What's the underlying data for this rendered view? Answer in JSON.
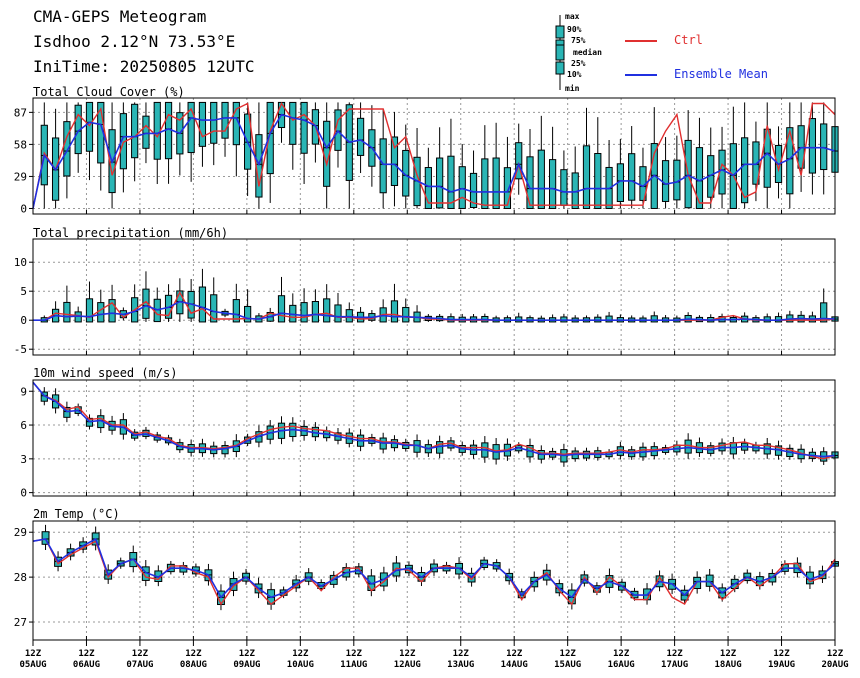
{
  "header": {
    "title": "CMA-GEPS Meteogram",
    "location": "Isdhoo 2.12°N 73.53°E",
    "init_time": "IniTime: 20250805 12UTC"
  },
  "legend": {
    "box_labels": [
      "max",
      "90%",
      "75%",
      "median",
      "25%",
      "10%",
      "min"
    ],
    "ctrl_label": "Ctrl",
    "mean_label": "Ensemble Mean",
    "ctrl_color": "#e03030",
    "mean_color": "#2030e0",
    "box_color": "#2ab5b5"
  },
  "x_ticks": [
    {
      "hour": "12Z",
      "date": "05AUG"
    },
    {
      "hour": "12Z",
      "date": "06AUG"
    },
    {
      "hour": "12Z",
      "date": "07AUG"
    },
    {
      "hour": "12Z",
      "date": "08AUG"
    },
    {
      "hour": "12Z",
      "date": "09AUG"
    },
    {
      "hour": "12Z",
      "date": "10AUG"
    },
    {
      "hour": "12Z",
      "date": "11AUG"
    },
    {
      "hour": "12Z",
      "date": "12AUG"
    },
    {
      "hour": "12Z",
      "date": "13AUG"
    },
    {
      "hour": "12Z",
      "date": "14AUG"
    },
    {
      "hour": "12Z",
      "date": "15AUG"
    },
    {
      "hour": "12Z",
      "date": "16AUG"
    },
    {
      "hour": "12Z",
      "date": "17AUG"
    },
    {
      "hour": "12Z",
      "date": "18AUG"
    },
    {
      "hour": "12Z",
      "date": "19AUG"
    },
    {
      "hour": "12Z",
      "date": "20AUG"
    }
  ],
  "chart_data": [
    {
      "type": "box",
      "title": "Total Cloud Cover (%)",
      "ylim": [
        -5,
        100
      ],
      "yticks": [
        0,
        29,
        58,
        87
      ],
      "ctrl": [
        0,
        50,
        35,
        65,
        85,
        75,
        90,
        30,
        60,
        65,
        75,
        65,
        85,
        80,
        90,
        65,
        70,
        70,
        90,
        95,
        20,
        70,
        95,
        80,
        85,
        75,
        40,
        80,
        90,
        90,
        90,
        90,
        55,
        65,
        30,
        5,
        5,
        5,
        10,
        5,
        3,
        3,
        3,
        40,
        3,
        3,
        3,
        3,
        3,
        3,
        3,
        3,
        3,
        3,
        3,
        50,
        70,
        85,
        30,
        5,
        5,
        40,
        30,
        10,
        15,
        75,
        35,
        70,
        30,
        95,
        95,
        85
      ],
      "mean": [
        0,
        48,
        35,
        52,
        70,
        78,
        76,
        42,
        65,
        65,
        68,
        68,
        72,
        68,
        82,
        80,
        80,
        82,
        82,
        60,
        40,
        68,
        85,
        82,
        80,
        75,
        55,
        70,
        60,
        62,
        55,
        40,
        40,
        30,
        25,
        20,
        20,
        15,
        18,
        15,
        15,
        15,
        15,
        40,
        18,
        18,
        18,
        15,
        15,
        18,
        18,
        18,
        25,
        25,
        20,
        30,
        22,
        24,
        30,
        25,
        30,
        35,
        30,
        40,
        40,
        50,
        40,
        45,
        55,
        55,
        55,
        52
      ]
    },
    {
      "type": "box",
      "title": "Total precipitation (mm/6h)",
      "ylim": [
        -6,
        14
      ],
      "yticks": [
        -5,
        0,
        5,
        10
      ],
      "ctrl": [
        0,
        0,
        1.2,
        1.0,
        0.8,
        0.5,
        1.8,
        3.0,
        0.5,
        1.8,
        3.2,
        1.0,
        0.8,
        4.8,
        1.2,
        2.0,
        0.2,
        0.2,
        0.2,
        0.3,
        0.2,
        1.2,
        0.8,
        0.5,
        0.5,
        1.0,
        1.2,
        0.5,
        0.5,
        0.2,
        0.3,
        1.0,
        1.0,
        0.5,
        0.5,
        0.2,
        0.2,
        0,
        0,
        0,
        0,
        0,
        0,
        0,
        0,
        0,
        0,
        0,
        0,
        0,
        0,
        0,
        0,
        0,
        0,
        0,
        0,
        0,
        0,
        0,
        0,
        0.5,
        0.8,
        0.2,
        0,
        0,
        0,
        0,
        0,
        0,
        0,
        0.2
      ],
      "mean": [
        0,
        0,
        0.8,
        0.6,
        0.7,
        0.6,
        1.0,
        1.2,
        1.0,
        1.5,
        2.5,
        1.8,
        2.2,
        3.2,
        2.8,
        2.2,
        1.5,
        1.2,
        1.0,
        0.3,
        0.2,
        0.6,
        1.2,
        1.0,
        0.8,
        1.0,
        0.8,
        0.6,
        0.6,
        0.5,
        0.5,
        0.8,
        0.6,
        0.6,
        0.5,
        0.4,
        0.3,
        0.1,
        0.1,
        0.1,
        0.1,
        0,
        0,
        0,
        0,
        0,
        0,
        0,
        0,
        0,
        0,
        0,
        0,
        0,
        0,
        0,
        0,
        0,
        0.2,
        0.1,
        0,
        0.1,
        0.1,
        0.2,
        0.1,
        0,
        0,
        0.2,
        0.3,
        0.2,
        0.3,
        0.2
      ]
    },
    {
      "type": "box",
      "title": "10m wind speed (m/s)",
      "ylim": [
        -0.3,
        10
      ],
      "yticks": [
        0,
        3,
        6,
        9
      ],
      "ctrl": [
        9.8,
        8.6,
        8.2,
        7.4,
        7.6,
        6.5,
        6.6,
        6.0,
        6.0,
        5.2,
        5.4,
        5.0,
        4.8,
        4.2,
        4.0,
        4.0,
        3.9,
        4.0,
        4.2,
        4.8,
        5.2,
        5.6,
        5.8,
        5.9,
        5.7,
        5.6,
        5.5,
        5.2,
        5.0,
        4.8,
        4.8,
        4.5,
        4.5,
        4.3,
        4.2,
        3.9,
        4.3,
        4.4,
        4.0,
        4.0,
        4.0,
        3.7,
        3.8,
        4.3,
        4.0,
        3.5,
        3.5,
        3.4,
        3.5,
        3.5,
        3.5,
        3.6,
        3.8,
        3.6,
        3.8,
        3.8,
        3.9,
        4.2,
        4.2,
        4.0,
        4.0,
        4.2,
        4.4,
        4.5,
        4.2,
        4.2,
        4.0,
        3.8,
        3.5,
        3.2,
        3.0,
        3.3
      ],
      "mean": [
        9.8,
        8.6,
        8.1,
        7.2,
        7.3,
        6.3,
        6.4,
        5.9,
        5.8,
        5.1,
        5.2,
        4.9,
        4.6,
        4.1,
        3.9,
        3.9,
        3.8,
        3.9,
        4.1,
        4.6,
        5.0,
        5.3,
        5.5,
        5.6,
        5.5,
        5.3,
        5.2,
        5.0,
        4.8,
        4.6,
        4.6,
        4.4,
        4.4,
        4.2,
        4.2,
        3.9,
        4.1,
        4.2,
        3.9,
        3.8,
        3.8,
        3.6,
        3.7,
        4.0,
        3.7,
        3.4,
        3.4,
        3.3,
        3.4,
        3.4,
        3.4,
        3.4,
        3.6,
        3.5,
        3.6,
        3.7,
        3.8,
        3.9,
        4.0,
        3.9,
        3.8,
        4.0,
        4.0,
        4.1,
        4.0,
        3.9,
        3.8,
        3.6,
        3.4,
        3.3,
        3.2,
        3.3
      ]
    },
    {
      "type": "box",
      "title": "2m Temp (°C)",
      "ylim": [
        26.6,
        29.25
      ],
      "yticks": [
        27,
        28,
        29
      ],
      "ctrl": [
        28.8,
        28.85,
        28.3,
        28.5,
        28.65,
        28.8,
        28.0,
        28.3,
        28.4,
        28.0,
        27.95,
        28.25,
        28.25,
        28.1,
        28.0,
        27.4,
        27.8,
        28.0,
        27.7,
        27.4,
        27.6,
        27.8,
        28.0,
        27.7,
        28.0,
        28.2,
        28.2,
        27.7,
        27.9,
        28.2,
        28.15,
        27.9,
        28.2,
        28.25,
        28.2,
        27.95,
        28.3,
        28.25,
        28.0,
        27.5,
        27.9,
        28.1,
        27.7,
        27.4,
        28.0,
        27.65,
        28.0,
        27.8,
        27.5,
        27.5,
        28.0,
        27.55,
        27.4,
        27.9,
        27.9,
        27.5,
        27.75,
        28.0,
        27.8,
        28.0,
        28.3,
        28.3,
        27.9,
        28.0,
        28.4
      ],
      "mean": [
        28.8,
        28.85,
        28.35,
        28.55,
        28.7,
        28.85,
        28.05,
        28.3,
        28.4,
        28.1,
        28.0,
        28.2,
        28.2,
        28.15,
        28.05,
        27.55,
        27.85,
        28.0,
        27.75,
        27.55,
        27.65,
        27.85,
        28.0,
        27.8,
        27.95,
        28.1,
        28.15,
        27.85,
        27.95,
        28.15,
        28.2,
        28.0,
        28.2,
        28.2,
        28.2,
        28.0,
        28.3,
        28.25,
        28.0,
        27.6,
        27.9,
        28.05,
        27.75,
        27.55,
        27.95,
        27.75,
        27.9,
        27.8,
        27.6,
        27.6,
        27.9,
        27.85,
        27.6,
        27.9,
        27.9,
        27.65,
        27.85,
        28.0,
        27.9,
        28.0,
        28.2,
        28.2,
        27.95,
        28.05,
        28.3
      ]
    }
  ]
}
